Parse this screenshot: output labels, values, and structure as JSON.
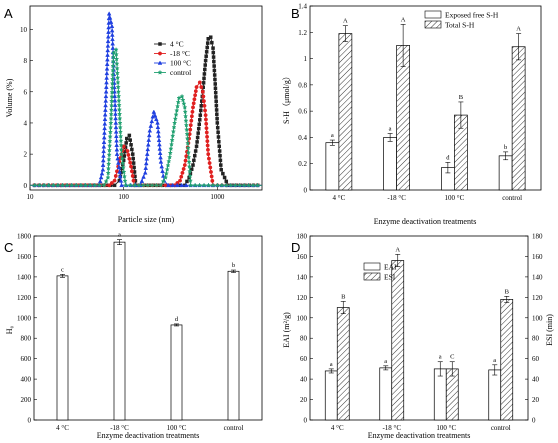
{
  "chart_data": [
    {
      "panel": "A",
      "type": "line",
      "xlabel": "Particle size (nm)",
      "ylabel": "Volume (%)",
      "xscale": "log",
      "xlim": [
        10,
        3000
      ],
      "ylim": [
        -0.3,
        11.5
      ],
      "xticks": [
        10,
        100,
        1000
      ],
      "yticks": [
        0,
        2,
        4,
        6,
        8,
        10
      ],
      "legend_position": "top-right",
      "series": [
        {
          "name": "4 °C",
          "color": "#222222",
          "marker": "square",
          "x": [
            10,
            60,
            80,
            90,
            100,
            108,
            115,
            125,
            135,
            450,
            500,
            550,
            600,
            650,
            700,
            750,
            800,
            850,
            900,
            950,
            1000,
            1100,
            1300,
            3000
          ],
          "y": [
            0,
            0,
            0,
            0.3,
            1.6,
            3.0,
            3.2,
            2.0,
            0,
            0,
            0.5,
            1.3,
            2.5,
            4.2,
            6.0,
            8.0,
            9.4,
            9.5,
            8.8,
            6.5,
            4.0,
            1.0,
            0,
            0
          ]
        },
        {
          "name": "-18 °C",
          "color": "#e02020",
          "marker": "circle",
          "x": [
            10,
            70,
            80,
            90,
            100,
            110,
            120,
            130,
            350,
            400,
            450,
            500,
            550,
            600,
            650,
            700,
            750,
            800,
            900,
            3000
          ],
          "y": [
            0,
            0,
            0.3,
            1.5,
            2.5,
            2.2,
            1.2,
            0,
            0,
            0.3,
            1.3,
            3.0,
            5.0,
            6.3,
            6.6,
            6.0,
            4.5,
            2.0,
            0,
            0
          ]
        },
        {
          "name": "100 °C",
          "color": "#2040e0",
          "marker": "triangle",
          "x": [
            10,
            55,
            60,
            65,
            70,
            75,
            80,
            85,
            95,
            150,
            170,
            190,
            210,
            230,
            250,
            270,
            300,
            3000
          ],
          "y": [
            0,
            0,
            1.0,
            6.0,
            11.0,
            10.2,
            6.0,
            2.0,
            0,
            0,
            0.8,
            3.5,
            4.7,
            4.0,
            1.5,
            0.3,
            0,
            0
          ]
        },
        {
          "name": "control",
          "color": "#20a070",
          "marker": "star",
          "x": [
            10,
            62,
            68,
            73,
            78,
            83,
            88,
            95,
            105,
            250,
            280,
            310,
            350,
            390,
            420,
            450,
            480,
            520,
            3000
          ],
          "y": [
            0,
            0,
            0.5,
            4.0,
            8.5,
            8.7,
            6.0,
            2.0,
            0,
            0,
            0.5,
            1.8,
            4.0,
            5.6,
            5.7,
            5.0,
            3.0,
            0,
            0
          ]
        }
      ]
    },
    {
      "panel": "B",
      "type": "bar",
      "xlabel": "Enzyme deactivation treatments",
      "ylabel": "S-H（μmol/g）",
      "ylim": [
        0,
        1.4
      ],
      "yticks": [
        0,
        0.2,
        0.4,
        0.6,
        0.8,
        1.0,
        1.2,
        1.4
      ],
      "categories": [
        "4 °C",
        "-18 °C",
        "100 °C",
        "control"
      ],
      "legend_position": "top-right",
      "series": [
        {
          "name": "Exposed free S-H",
          "pattern": "plain",
          "values": [
            0.36,
            0.4,
            0.17,
            0.26
          ],
          "errors": [
            0.02,
            0.03,
            0.04,
            0.03
          ],
          "labels": [
            "a",
            "a",
            "d",
            "b"
          ]
        },
        {
          "name": "Total S-H",
          "pattern": "hatch",
          "values": [
            1.19,
            1.1,
            0.57,
            1.09
          ],
          "errors": [
            0.06,
            0.16,
            0.1,
            0.1
          ],
          "labels": [
            "A",
            "A",
            "B",
            "A"
          ]
        }
      ]
    },
    {
      "panel": "C",
      "type": "bar",
      "xlabel": "Enzyme deactivation treatments",
      "ylabel": "H₀",
      "ylim": [
        0,
        1800
      ],
      "yticks": [
        0,
        200,
        400,
        600,
        800,
        1000,
        1200,
        1400,
        1600,
        1800
      ],
      "categories": [
        "4 °C",
        "-18 °C",
        "100 °C",
        "control"
      ],
      "series": [
        {
          "name": "",
          "pattern": "plain",
          "values": [
            1410,
            1740,
            930,
            1455
          ],
          "errors": [
            15,
            25,
            10,
            12
          ],
          "labels": [
            "c",
            "a",
            "d",
            "b"
          ]
        }
      ]
    },
    {
      "panel": "D",
      "type": "bar",
      "xlabel": "Enzyme deactivation treatments",
      "ylabel": "EAI (m²/g)",
      "y2label": "ESI (min)",
      "ylim": [
        0,
        180
      ],
      "y2lim": [
        0,
        180
      ],
      "yticks": [
        0,
        20,
        40,
        60,
        80,
        100,
        120,
        140,
        160,
        180
      ],
      "categories": [
        "4 °C",
        "-18 °C",
        "100 °C",
        "control"
      ],
      "legend_position": "top-left",
      "series": [
        {
          "name": "EAI",
          "pattern": "plain",
          "values": [
            48,
            51,
            50,
            49
          ],
          "errors": [
            2,
            2,
            7,
            5
          ],
          "labels": [
            "a",
            "a",
            "a",
            "a"
          ]
        },
        {
          "name": "ESI",
          "pattern": "hatch",
          "values": [
            110,
            156,
            50,
            118
          ],
          "errors": [
            6,
            6,
            7,
            3
          ],
          "labels": [
            "B",
            "A",
            "C",
            "B"
          ]
        }
      ]
    }
  ]
}
